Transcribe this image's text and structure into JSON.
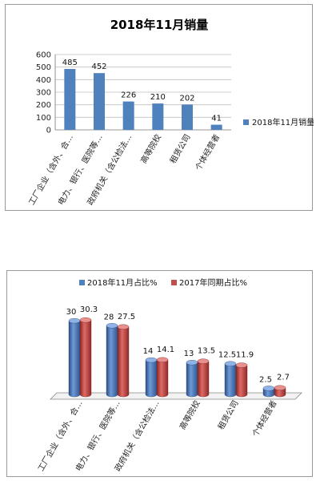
{
  "chart_data": [
    {
      "type": "bar",
      "title": "2018年11月销量",
      "categories": [
        "工厂企业（含外、合…",
        "电力、银行、医院等…",
        "政府机关（含公检法…",
        "高等院校",
        "租赁公司",
        "个体经营者"
      ],
      "series": [
        {
          "name": "2018年11月销量",
          "values": [
            485,
            452,
            226,
            210,
            202,
            41
          ]
        }
      ],
      "yticks": [
        0,
        100,
        200,
        300,
        400,
        500,
        600
      ],
      "ylim": [
        0,
        600
      ],
      "grid": true,
      "legend": "right",
      "colors": {
        "series0": "#4f81bd"
      }
    },
    {
      "type": "bar",
      "title": "",
      "categories": [
        "工厂企业（含外、合…",
        "电力、银行、医院等…",
        "政府机关（含公检法…",
        "高等院校",
        "租赁公司",
        "个体经营者"
      ],
      "series": [
        {
          "name": "2018年11月占比%",
          "values": [
            30,
            28,
            14,
            13,
            12.5,
            2.5
          ]
        },
        {
          "name": "2017年同期占比%",
          "values": [
            30.3,
            27.5,
            14.1,
            13.5,
            11.9,
            2.7
          ]
        }
      ],
      "value_labels": [
        [
          "30",
          "28",
          "14",
          "13",
          "12.5",
          "2.5"
        ],
        [
          "30.3",
          "27.5",
          "14.1",
          "13.5",
          "11.9",
          "2.7"
        ]
      ],
      "ylim": [
        0,
        32
      ],
      "legend": "top",
      "style": "3d-cylinder",
      "colors": {
        "series0": "#4f81bd",
        "series1": "#c0504d"
      }
    }
  ]
}
